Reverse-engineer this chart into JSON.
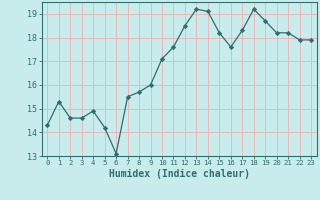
{
  "x": [
    0,
    1,
    2,
    3,
    4,
    5,
    6,
    7,
    8,
    9,
    10,
    11,
    12,
    13,
    14,
    15,
    16,
    17,
    18,
    19,
    20,
    21,
    22,
    23
  ],
  "y": [
    14.3,
    15.3,
    14.6,
    14.6,
    14.9,
    14.2,
    13.1,
    15.5,
    15.7,
    16.0,
    17.1,
    17.6,
    18.5,
    19.2,
    19.1,
    18.2,
    17.6,
    18.3,
    19.2,
    18.7,
    18.2,
    18.2,
    17.9,
    17.9
  ],
  "line_color": "#2d6e6e",
  "marker": "D",
  "marker_size": 2.2,
  "bg_color": "#c8ecec",
  "grid_color": "#e8b8b8",
  "xlabel": "Humidex (Indice chaleur)",
  "ylim": [
    13,
    19.5
  ],
  "xlim": [
    -0.5,
    23.5
  ],
  "yticks": [
    13,
    14,
    15,
    16,
    17,
    18,
    19
  ],
  "xticks": [
    0,
    1,
    2,
    3,
    4,
    5,
    6,
    7,
    8,
    9,
    10,
    11,
    12,
    13,
    14,
    15,
    16,
    17,
    18,
    19,
    20,
    21,
    22,
    23
  ],
  "tick_color": "#2d6e6e",
  "axis_color": "#2d6e6e",
  "xlabel_fontsize": 7,
  "xtick_fontsize": 5.2,
  "ytick_fontsize": 6.0
}
